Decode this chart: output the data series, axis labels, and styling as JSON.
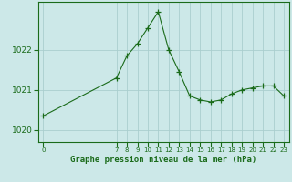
{
  "x": [
    0,
    7,
    8,
    9,
    10,
    11,
    12,
    13,
    14,
    15,
    16,
    17,
    18,
    19,
    20,
    21,
    22,
    23
  ],
  "y": [
    1020.35,
    1021.3,
    1021.85,
    1022.15,
    1022.55,
    1022.95,
    1022.0,
    1021.45,
    1020.85,
    1020.75,
    1020.7,
    1020.75,
    1020.9,
    1021.0,
    1021.05,
    1021.1,
    1021.1,
    1020.85
  ],
  "line_color": "#1a6b1a",
  "marker_color": "#1a6b1a",
  "bg_color": "#cce8e8",
  "grid_color": "#aacece",
  "title": "Graphe pression niveau de la mer (hPa)",
  "yticks": [
    1020,
    1021,
    1022
  ],
  "xticks": [
    0,
    7,
    8,
    9,
    10,
    11,
    12,
    13,
    14,
    15,
    16,
    17,
    18,
    19,
    20,
    21,
    22,
    23
  ],
  "ylim": [
    1019.7,
    1023.2
  ],
  "xlim": [
    -0.5,
    23.5
  ],
  "figwidth": 3.2,
  "figheight": 2.0,
  "dpi": 100
}
